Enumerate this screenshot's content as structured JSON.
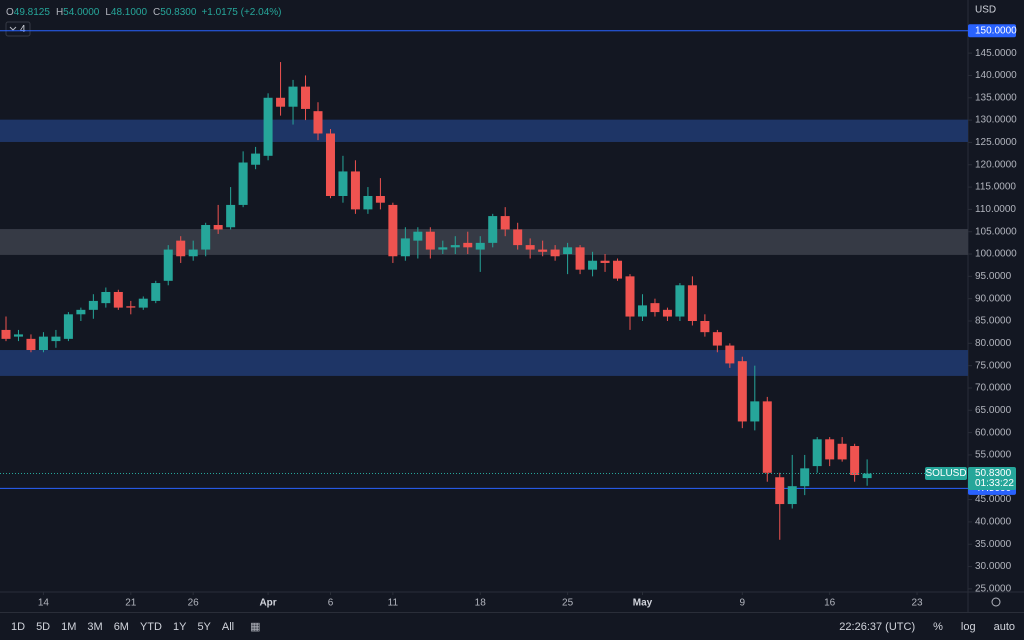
{
  "chart_data": {
    "type": "candlestick",
    "header": {
      "fields": [
        {
          "label": "O",
          "value": "49.8125"
        },
        {
          "label": "H",
          "value": "54.0000"
        },
        {
          "label": "L",
          "value": "48.1000"
        },
        {
          "label": "C",
          "value": "50.8300"
        }
      ],
      "change": "+1.0175 (+2.04%)",
      "indicator_count": "4"
    },
    "currency": "USD",
    "x": [
      "03-11",
      "03-12",
      "03-13",
      "03-14",
      "03-15",
      "03-16",
      "03-17",
      "03-18",
      "03-19",
      "03-20",
      "03-21",
      "03-22",
      "03-23",
      "03-24",
      "03-25",
      "03-26",
      "03-27",
      "03-28",
      "03-29",
      "03-30",
      "03-31",
      "04-01",
      "04-02",
      "04-03",
      "04-04",
      "04-05",
      "04-06",
      "04-07",
      "04-08",
      "04-09",
      "04-10",
      "04-11",
      "04-12",
      "04-13",
      "04-14",
      "04-15",
      "04-16",
      "04-17",
      "04-18",
      "04-19",
      "04-20",
      "04-21",
      "04-22",
      "04-23",
      "04-24",
      "04-25",
      "04-26",
      "04-27",
      "04-28",
      "04-29",
      "04-30",
      "05-01",
      "05-02",
      "05-03",
      "05-04",
      "05-05",
      "05-06",
      "05-07",
      "05-08",
      "05-09",
      "05-10",
      "05-11",
      "05-12",
      "05-13",
      "05-14",
      "05-15",
      "05-16",
      "05-17",
      "05-18",
      "05-19"
    ],
    "open": [
      83,
      81.5,
      81,
      78.5,
      80.5,
      81,
      86.5,
      87.5,
      89,
      91.5,
      88.3,
      88,
      89.5,
      94,
      103,
      99.5,
      101,
      106.5,
      106,
      111,
      120,
      122,
      135,
      133,
      137.5,
      132,
      127,
      113,
      118.5,
      110,
      113,
      111,
      99.5,
      103,
      105,
      101,
      101.5,
      102.5,
      101,
      102.5,
      108.5,
      105.5,
      102,
      101,
      101,
      100,
      101.5,
      96.5,
      98.5,
      98.5,
      95,
      86,
      89,
      87.5,
      86,
      93,
      85,
      82.5,
      79.5,
      76,
      62.5,
      67,
      50,
      44,
      48,
      52.5,
      58.5,
      57.5,
      57,
      49.8125
    ],
    "high": [
      86,
      83,
      82,
      82.5,
      83,
      87,
      88,
      91,
      92.5,
      92,
      89.5,
      90.5,
      94,
      102,
      104,
      103,
      107,
      111,
      115,
      123,
      124,
      136,
      143,
      139,
      140,
      134,
      128,
      122,
      121,
      115,
      117,
      111.5,
      106,
      106,
      106,
      103,
      104,
      105,
      104,
      109,
      110.5,
      107,
      103.5,
      103,
      102,
      102.5,
      102,
      100.5,
      100,
      99,
      95.5,
      91,
      90,
      88,
      93.5,
      95,
      86.5,
      83,
      80,
      77,
      75,
      68,
      51,
      55,
      55,
      59,
      59,
      59,
      57.5,
      54
    ],
    "low": [
      80.5,
      80.5,
      78,
      78,
      79,
      80.5,
      85,
      85.5,
      88,
      87.5,
      86.5,
      87.5,
      89,
      93,
      98,
      98.5,
      99.5,
      104.5,
      105.5,
      110.5,
      119,
      121,
      131,
      129,
      130,
      125.5,
      112.5,
      111.5,
      109,
      109,
      110,
      98,
      98.5,
      99,
      99,
      100,
      100,
      100,
      96,
      101.5,
      104,
      101,
      99,
      99.5,
      98.5,
      95.5,
      95.5,
      95,
      96,
      94,
      83,
      85,
      86,
      85,
      85,
      84,
      81.5,
      78,
      74.5,
      61,
      60.5,
      49,
      36,
      43,
      46,
      51,
      52.5,
      53.5,
      49,
      48.1
    ],
    "close": [
      81,
      82,
      78.5,
      81.5,
      81.5,
      86.5,
      87.5,
      89.5,
      91.5,
      88,
      88,
      90,
      93.5,
      101,
      99.5,
      101,
      106.5,
      105.5,
      111,
      120.5,
      122.5,
      135,
      133,
      137.5,
      132.5,
      127,
      113,
      118.5,
      110,
      113,
      111.5,
      99.5,
      103.5,
      105,
      101,
      101.5,
      102,
      101.5,
      102.5,
      108.5,
      105.5,
      102,
      101,
      100.5,
      99.5,
      101.5,
      96.5,
      98.5,
      98,
      94.5,
      86,
      88.5,
      87,
      86,
      93,
      85,
      82.5,
      79.5,
      75.5,
      62.5,
      67,
      51,
      44,
      48,
      52,
      58.5,
      54,
      54,
      50.5,
      50.83
    ],
    "up_color": "#26a69a",
    "down_color": "#ef5350",
    "ylim": [
      24.3,
      156.9
    ],
    "yticks": [
      {
        "value": 25,
        "label": "25.0000"
      },
      {
        "value": 30,
        "label": "30.0000"
      },
      {
        "value": 35,
        "label": "35.0000"
      },
      {
        "value": 40,
        "label": "40.0000"
      },
      {
        "value": 45,
        "label": "45.0000"
      },
      {
        "value": 50,
        "label": "50.0000"
      },
      {
        "value": 55,
        "label": "55.0000"
      },
      {
        "value": 60,
        "label": "60.0000"
      },
      {
        "value": 65,
        "label": "65.0000"
      },
      {
        "value": 70,
        "label": "70.0000"
      },
      {
        "value": 75,
        "label": "75.0000"
      },
      {
        "value": 80,
        "label": "80.0000"
      },
      {
        "value": 85,
        "label": "85.0000"
      },
      {
        "value": 90,
        "label": "90.0000"
      },
      {
        "value": 95,
        "label": "95.0000"
      },
      {
        "value": 100,
        "label": "100.0000"
      },
      {
        "value": 105,
        "label": "105.0000"
      },
      {
        "value": 110,
        "label": "110.0000"
      },
      {
        "value": 115,
        "label": "115.0000"
      },
      {
        "value": 120,
        "label": "120.0000"
      },
      {
        "value": 125,
        "label": "125.0000"
      },
      {
        "value": 130,
        "label": "130.0000"
      },
      {
        "value": 135,
        "label": "135.0000"
      },
      {
        "value": 140,
        "label": "140.0000"
      },
      {
        "value": 145,
        "label": "145.0000"
      }
    ],
    "xticks": [
      {
        "value": "03-14",
        "label": "14"
      },
      {
        "value": "03-21",
        "label": "21"
      },
      {
        "value": "03-26",
        "label": "26"
      },
      {
        "value": "04-01",
        "label": "Apr"
      },
      {
        "value": "04-06",
        "label": "6"
      },
      {
        "value": "04-11",
        "label": "11"
      },
      {
        "value": "04-18",
        "label": "18"
      },
      {
        "value": "04-25",
        "label": "25"
      },
      {
        "value": "05-01",
        "label": "May"
      },
      {
        "value": "05-09",
        "label": "9"
      },
      {
        "value": "05-16",
        "label": "16"
      },
      {
        "value": "05-23",
        "label": "23"
      }
    ],
    "grid": false,
    "zones": [
      {
        "from": 125.1,
        "to": 130.1,
        "color": "#1e3566"
      },
      {
        "from": 99.8,
        "to": 105.6,
        "color": "#363a45"
      },
      {
        "from": 72.7,
        "to": 78.5,
        "color": "#1e3566"
      }
    ],
    "price_lines": [
      {
        "value": 150,
        "label": "150.0000",
        "color": "#2962ff"
      },
      {
        "value": 47.5,
        "label": "47.5000",
        "color": "#2962ff"
      }
    ],
    "current_price": {
      "symbol": "SOLUSD",
      "label": "50.8300",
      "countdown": "01:33:22"
    }
  },
  "toolbar": {
    "ranges": [
      "1D",
      "5D",
      "1M",
      "3M",
      "6M",
      "YTD",
      "1Y",
      "5Y",
      "All"
    ],
    "clock": "22:26:37 (UTC)",
    "options": [
      "%",
      "log",
      "auto"
    ]
  }
}
